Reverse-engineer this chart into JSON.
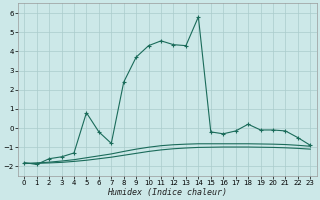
{
  "xlabel": "Humidex (Indice chaleur)",
  "bg_color": "#cce8e8",
  "grid_color": "#aacccc",
  "line_color": "#1a6b5a",
  "xlim": [
    -0.5,
    23.5
  ],
  "ylim": [
    -2.5,
    6.5
  ],
  "xticks": [
    0,
    1,
    2,
    3,
    4,
    5,
    6,
    7,
    8,
    9,
    10,
    11,
    12,
    13,
    14,
    15,
    16,
    17,
    18,
    19,
    20,
    21,
    22,
    23
  ],
  "yticks": [
    -2,
    -1,
    0,
    1,
    2,
    3,
    4,
    5,
    6
  ],
  "series": [
    [
      0,
      -1.8
    ],
    [
      1,
      -1.9
    ],
    [
      2,
      -1.6
    ],
    [
      3,
      -1.5
    ],
    [
      4,
      -1.3
    ],
    [
      5,
      0.8
    ],
    [
      6,
      -0.2
    ],
    [
      7,
      -0.8
    ],
    [
      8,
      2.4
    ],
    [
      9,
      3.7
    ],
    [
      10,
      4.3
    ],
    [
      11,
      4.55
    ],
    [
      12,
      4.35
    ],
    [
      13,
      4.3
    ],
    [
      14,
      5.8
    ],
    [
      15,
      -0.2
    ],
    [
      16,
      -0.3
    ],
    [
      17,
      -0.15
    ],
    [
      18,
      0.2
    ],
    [
      19,
      -0.1
    ],
    [
      20,
      -0.1
    ],
    [
      21,
      -0.15
    ],
    [
      22,
      -0.5
    ],
    [
      23,
      -0.9
    ]
  ],
  "smooth_line1": [
    [
      0,
      -1.85
    ],
    [
      1,
      -1.82
    ],
    [
      2,
      -1.78
    ],
    [
      3,
      -1.72
    ],
    [
      4,
      -1.65
    ],
    [
      5,
      -1.55
    ],
    [
      6,
      -1.45
    ],
    [
      7,
      -1.35
    ],
    [
      8,
      -1.22
    ],
    [
      9,
      -1.1
    ],
    [
      10,
      -1.0
    ],
    [
      11,
      -0.92
    ],
    [
      12,
      -0.87
    ],
    [
      13,
      -0.84
    ],
    [
      14,
      -0.82
    ],
    [
      15,
      -0.82
    ],
    [
      16,
      -0.82
    ],
    [
      17,
      -0.82
    ],
    [
      18,
      -0.82
    ],
    [
      19,
      -0.83
    ],
    [
      20,
      -0.84
    ],
    [
      21,
      -0.86
    ],
    [
      22,
      -0.9
    ],
    [
      23,
      -0.95
    ]
  ],
  "smooth_line2": [
    [
      0,
      -1.85
    ],
    [
      1,
      -1.84
    ],
    [
      2,
      -1.82
    ],
    [
      3,
      -1.79
    ],
    [
      4,
      -1.74
    ],
    [
      5,
      -1.68
    ],
    [
      6,
      -1.6
    ],
    [
      7,
      -1.52
    ],
    [
      8,
      -1.42
    ],
    [
      9,
      -1.32
    ],
    [
      10,
      -1.22
    ],
    [
      11,
      -1.14
    ],
    [
      12,
      -1.08
    ],
    [
      13,
      -1.04
    ],
    [
      14,
      -1.01
    ],
    [
      15,
      -1.0
    ],
    [
      16,
      -0.99
    ],
    [
      17,
      -0.99
    ],
    [
      18,
      -0.99
    ],
    [
      19,
      -1.0
    ],
    [
      20,
      -1.01
    ],
    [
      21,
      -1.03
    ],
    [
      22,
      -1.06
    ],
    [
      23,
      -1.1
    ]
  ]
}
